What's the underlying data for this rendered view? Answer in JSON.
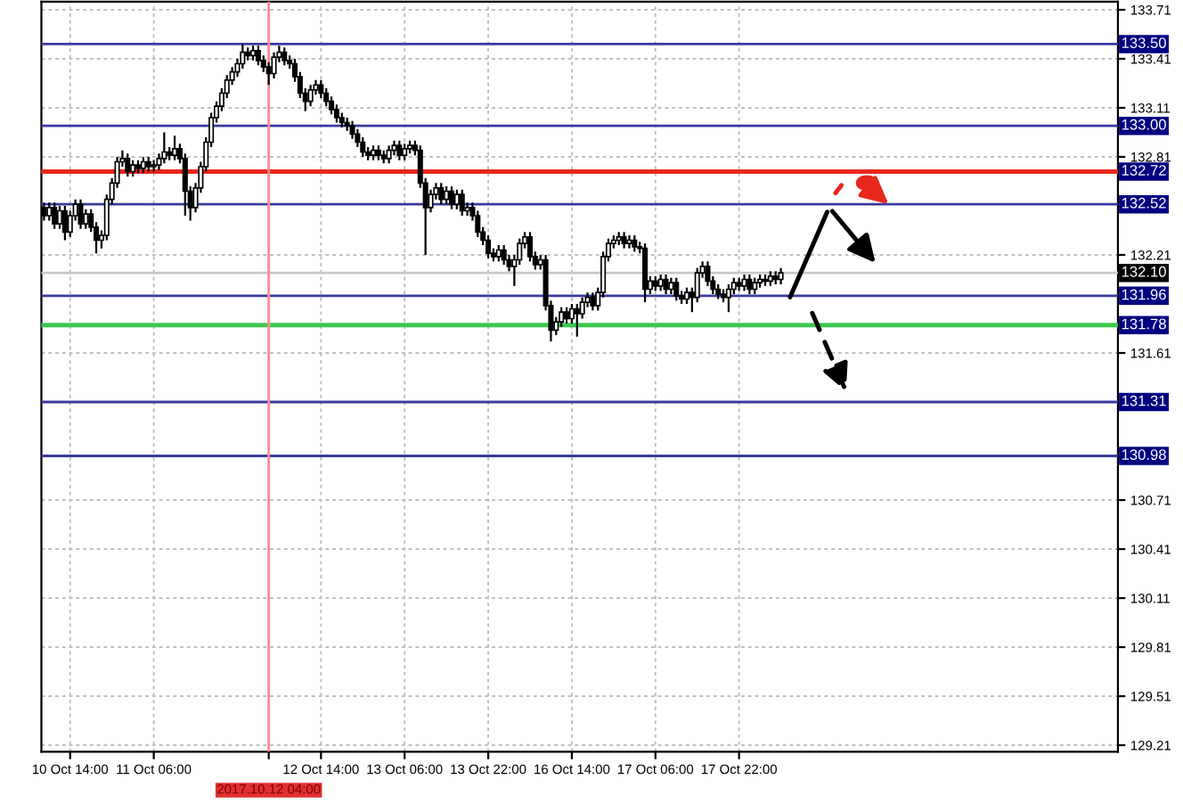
{
  "chart_data": {
    "type": "candlestick",
    "categories": [
      null,
      null,
      null,
      null,
      null,
      "10 Oct 14:00",
      null,
      null,
      null,
      null,
      null,
      null,
      null,
      null,
      null,
      null,
      null,
      null,
      null,
      null,
      null,
      "11 Oct 06:00",
      null,
      null,
      null,
      null,
      null,
      null,
      null,
      null,
      null,
      null,
      null,
      null,
      null,
      null,
      null,
      null,
      null,
      null,
      null,
      null,
      null,
      "2017.10.12 04:00",
      null,
      null,
      null,
      null,
      null,
      null,
      null,
      null,
      null,
      "12 Oct 14:00",
      null,
      null,
      null,
      null,
      null,
      null,
      null,
      null,
      null,
      null,
      null,
      null,
      null,
      null,
      null,
      "13 Oct 06:00",
      null,
      null,
      null,
      null,
      null,
      null,
      null,
      null,
      null,
      null,
      null,
      null,
      null,
      null,
      null,
      "13 Oct 22:00",
      null,
      null,
      null,
      null,
      null,
      null,
      null,
      null,
      null,
      null,
      null,
      null,
      null,
      null,
      null,
      "16 Oct 14:00",
      null,
      null,
      null,
      null,
      null,
      null,
      null,
      null,
      null,
      null,
      null,
      null,
      null,
      null,
      null,
      "17 Oct 06:00",
      null,
      null,
      null,
      null,
      null,
      null,
      null,
      null,
      null,
      null,
      null,
      null,
      null,
      null,
      null,
      "17 Oct 22:00",
      null,
      null,
      null,
      null,
      null,
      null,
      null,
      null,
      null,
      null,
      null,
      null,
      null,
      null,
      null,
      null,
      null,
      null,
      null,
      null,
      null,
      null,
      null,
      null,
      null,
      null,
      null,
      null,
      null,
      null,
      null,
      null,
      null,
      null,
      null,
      null,
      null,
      null,
      null,
      null,
      null,
      null,
      null,
      null,
      null,
      null,
      null,
      null,
      null,
      null,
      null,
      null,
      null,
      null,
      null,
      null,
      null,
      null,
      null,
      null,
      null,
      null,
      null,
      null,
      null,
      null,
      null,
      null,
      null,
      null,
      null,
      null
    ],
    "ohlc": [
      [
        132.5,
        132.53,
        132.42,
        132.45
      ],
      [
        132.45,
        132.53,
        132.42,
        132.5
      ],
      [
        132.5,
        132.53,
        132.37,
        132.4
      ],
      [
        132.4,
        132.51,
        132.37,
        132.48
      ],
      [
        132.48,
        132.51,
        132.3,
        132.35
      ],
      [
        132.35,
        132.48,
        132.32,
        132.45
      ],
      [
        132.45,
        132.55,
        132.42,
        132.52
      ],
      [
        132.52,
        132.55,
        132.37,
        132.4
      ],
      [
        132.4,
        132.49,
        132.37,
        132.46
      ],
      [
        132.46,
        132.49,
        132.35,
        132.38
      ],
      [
        132.38,
        132.41,
        132.22,
        132.3
      ],
      [
        132.3,
        132.36,
        132.25,
        132.33
      ],
      [
        132.33,
        132.58,
        132.3,
        132.55
      ],
      [
        132.55,
        132.68,
        132.52,
        132.65
      ],
      [
        132.65,
        132.81,
        132.62,
        132.78
      ],
      [
        132.78,
        132.85,
        132.75,
        132.8
      ],
      [
        132.8,
        132.83,
        132.69,
        132.72
      ],
      [
        132.72,
        132.79,
        132.69,
        132.76
      ],
      [
        132.76,
        132.79,
        132.71,
        132.74
      ],
      [
        132.74,
        132.81,
        132.71,
        132.78
      ],
      [
        132.78,
        132.81,
        132.72,
        132.75
      ],
      [
        132.75,
        132.79,
        132.72,
        132.76
      ],
      [
        132.76,
        132.83,
        132.73,
        132.8
      ],
      [
        132.8,
        132.96,
        132.77,
        132.84
      ],
      [
        132.84,
        132.87,
        132.79,
        132.82
      ],
      [
        132.82,
        132.94,
        132.79,
        132.86
      ],
      [
        132.86,
        132.89,
        132.77,
        132.8
      ],
      [
        132.8,
        132.83,
        132.45,
        132.6
      ],
      [
        132.6,
        132.63,
        132.42,
        132.5
      ],
      [
        132.5,
        132.65,
        132.47,
        132.62
      ],
      [
        132.62,
        132.78,
        132.59,
        132.75
      ],
      [
        132.75,
        132.93,
        132.72,
        132.9
      ],
      [
        132.9,
        133.08,
        132.87,
        133.05
      ],
      [
        133.05,
        133.15,
        133.02,
        133.12
      ],
      [
        133.12,
        133.23,
        133.09,
        133.2
      ],
      [
        133.2,
        133.31,
        133.17,
        133.28
      ],
      [
        133.28,
        133.36,
        133.25,
        133.33
      ],
      [
        133.33,
        133.41,
        133.3,
        133.38
      ],
      [
        133.38,
        133.5,
        133.35,
        133.45
      ],
      [
        133.45,
        133.48,
        133.4,
        133.43
      ],
      [
        133.43,
        133.49,
        133.4,
        133.46
      ],
      [
        133.46,
        133.49,
        133.37,
        133.4
      ],
      [
        133.4,
        133.43,
        133.33,
        133.36
      ],
      [
        133.36,
        133.39,
        133.25,
        133.32
      ],
      [
        133.32,
        133.45,
        133.29,
        133.42
      ],
      [
        133.42,
        133.49,
        133.39,
        133.45
      ],
      [
        133.45,
        133.48,
        133.37,
        133.4
      ],
      [
        133.4,
        133.43,
        133.35,
        133.38
      ],
      [
        133.38,
        133.41,
        133.27,
        133.3
      ],
      [
        133.3,
        133.33,
        133.17,
        133.2
      ],
      [
        133.2,
        133.23,
        133.09,
        133.15
      ],
      [
        133.15,
        133.25,
        133.12,
        133.22
      ],
      [
        133.22,
        133.28,
        133.19,
        133.25
      ],
      [
        133.25,
        133.28,
        133.17,
        133.2
      ],
      [
        133.2,
        133.23,
        133.12,
        133.15
      ],
      [
        133.15,
        133.18,
        133.07,
        133.1
      ],
      [
        133.1,
        133.13,
        133.02,
        133.05
      ],
      [
        133.05,
        133.08,
        132.99,
        133.02
      ],
      [
        133.02,
        133.05,
        132.97,
        133.0
      ],
      [
        133.0,
        133.03,
        132.92,
        132.95
      ],
      [
        132.95,
        132.98,
        132.87,
        132.9
      ],
      [
        132.9,
        132.93,
        132.81,
        132.84
      ],
      [
        132.84,
        132.87,
        132.79,
        132.82
      ],
      [
        132.82,
        132.88,
        132.79,
        132.85
      ],
      [
        132.85,
        132.88,
        132.79,
        132.82
      ],
      [
        132.82,
        132.85,
        132.77,
        132.8
      ],
      [
        132.8,
        132.88,
        132.77,
        132.85
      ],
      [
        132.85,
        132.91,
        132.82,
        132.88
      ],
      [
        132.88,
        132.91,
        132.79,
        132.82
      ],
      [
        132.82,
        132.89,
        132.79,
        132.86
      ],
      [
        132.86,
        132.91,
        132.83,
        132.88
      ],
      [
        132.88,
        132.91,
        132.82,
        132.85
      ],
      [
        132.85,
        132.88,
        132.62,
        132.65
      ],
      [
        132.65,
        132.68,
        132.21,
        132.5
      ],
      [
        132.5,
        132.61,
        132.47,
        132.58
      ],
      [
        132.58,
        132.65,
        132.55,
        132.62
      ],
      [
        132.62,
        132.65,
        132.52,
        132.55
      ],
      [
        132.55,
        132.63,
        132.52,
        132.6
      ],
      [
        132.6,
        132.63,
        132.49,
        132.52
      ],
      [
        132.52,
        132.61,
        132.49,
        132.58
      ],
      [
        132.58,
        132.61,
        132.45,
        132.48
      ],
      [
        132.48,
        132.53,
        132.45,
        132.5
      ],
      [
        132.5,
        132.53,
        132.42,
        132.45
      ],
      [
        132.45,
        132.48,
        132.32,
        132.35
      ],
      [
        132.35,
        132.38,
        132.27,
        132.3
      ],
      [
        132.3,
        132.33,
        132.19,
        132.22
      ],
      [
        132.22,
        132.25,
        132.17,
        132.2
      ],
      [
        132.2,
        132.27,
        132.17,
        132.24
      ],
      [
        132.24,
        132.27,
        132.15,
        132.18
      ],
      [
        132.18,
        132.21,
        132.11,
        132.14
      ],
      [
        132.14,
        132.21,
        132.02,
        132.18
      ],
      [
        132.18,
        132.31,
        132.15,
        132.28
      ],
      [
        132.28,
        132.35,
        132.25,
        132.32
      ],
      [
        132.32,
        132.35,
        132.17,
        132.2
      ],
      [
        132.2,
        132.23,
        132.12,
        132.15
      ],
      [
        132.15,
        132.21,
        132.12,
        132.18
      ],
      [
        132.18,
        132.21,
        131.87,
        131.9
      ],
      [
        131.9,
        131.93,
        131.68,
        131.75
      ],
      [
        131.75,
        131.83,
        131.72,
        131.8
      ],
      [
        131.8,
        131.89,
        131.77,
        131.86
      ],
      [
        131.86,
        131.89,
        131.79,
        131.82
      ],
      [
        131.82,
        131.91,
        131.79,
        131.88
      ],
      [
        131.88,
        131.91,
        131.71,
        131.85
      ],
      [
        131.85,
        131.95,
        131.82,
        131.92
      ],
      [
        131.92,
        131.98,
        131.89,
        131.95
      ],
      [
        131.95,
        131.98,
        131.87,
        131.9
      ],
      [
        131.9,
        132.01,
        131.87,
        131.98
      ],
      [
        131.98,
        132.23,
        131.95,
        132.2
      ],
      [
        132.2,
        132.31,
        132.17,
        132.28
      ],
      [
        132.28,
        132.33,
        132.25,
        132.3
      ],
      [
        132.3,
        132.35,
        132.27,
        132.32
      ],
      [
        132.32,
        132.35,
        132.25,
        132.28
      ],
      [
        132.28,
        132.33,
        132.25,
        132.3
      ],
      [
        132.3,
        132.33,
        132.23,
        132.26
      ],
      [
        132.26,
        132.29,
        132.22,
        132.25
      ],
      [
        132.25,
        132.28,
        131.92,
        132.0
      ],
      [
        132.0,
        132.08,
        131.97,
        132.05
      ],
      [
        132.05,
        132.08,
        131.99,
        132.02
      ],
      [
        132.02,
        132.09,
        131.99,
        132.06
      ],
      [
        132.06,
        132.09,
        131.97,
        132.0
      ],
      [
        132.0,
        132.07,
        131.97,
        132.04
      ],
      [
        132.04,
        132.07,
        131.93,
        131.96
      ],
      [
        131.96,
        131.99,
        131.91,
        131.94
      ],
      [
        131.94,
        132.01,
        131.91,
        131.98
      ],
      [
        131.98,
        132.01,
        131.86,
        131.95
      ],
      [
        131.95,
        132.13,
        131.92,
        132.1
      ],
      [
        132.1,
        132.17,
        132.07,
        132.14
      ],
      [
        132.14,
        132.17,
        132.02,
        132.05
      ],
      [
        132.05,
        132.08,
        131.97,
        132.0
      ],
      [
        132.0,
        132.03,
        131.94,
        131.97
      ],
      [
        131.97,
        132.0,
        131.92,
        131.95
      ],
      [
        131.95,
        132.03,
        131.86,
        132.0
      ],
      [
        132.0,
        132.07,
        131.97,
        132.04
      ],
      [
        132.04,
        132.07,
        131.99,
        132.02
      ],
      [
        132.02,
        132.09,
        131.99,
        132.06
      ],
      [
        132.06,
        132.09,
        131.97,
        132.0
      ],
      [
        132.0,
        132.07,
        131.97,
        132.04
      ],
      [
        132.04,
        132.09,
        132.01,
        132.06
      ],
      [
        132.06,
        132.09,
        132.02,
        132.05
      ],
      [
        132.05,
        132.11,
        132.02,
        132.08
      ],
      [
        132.08,
        132.11,
        132.03,
        132.06
      ],
      [
        132.06,
        132.13,
        132.03,
        132.1
      ],
      null,
      null,
      null,
      null,
      null,
      null,
      null,
      null,
      null,
      null,
      null,
      null,
      null,
      null,
      null,
      null,
      null,
      null,
      null,
      null,
      null,
      null,
      null,
      null,
      null,
      null,
      null,
      null,
      null,
      null,
      null,
      null,
      null,
      null,
      null,
      null,
      null,
      null,
      null,
      null,
      null,
      null,
      null,
      null,
      null,
      null,
      null,
      null,
      null,
      null,
      null,
      null,
      null,
      null,
      null,
      null,
      null,
      null,
      null,
      null,
      null,
      null,
      null,
      null
    ],
    "ylim": [
      129.17,
      133.76
    ],
    "yticks": [
      133.71,
      133.41,
      133.11,
      132.81,
      132.21,
      131.61,
      130.71,
      130.41,
      130.11,
      129.81,
      129.51,
      129.21
    ],
    "grid": true,
    "ref_lines": [
      {
        "axis": "y",
        "value": 133.5,
        "label": "133.50",
        "color": "#3a3aa0"
      },
      {
        "axis": "y",
        "value": 133.0,
        "label": "133.00",
        "color": "#3a3aa0"
      },
      {
        "axis": "y",
        "value": 132.72,
        "label": "132.72",
        "color": "#3a3aa0"
      },
      {
        "axis": "y",
        "value": 132.52,
        "label": "132.52",
        "color": "#3a3aa0"
      },
      {
        "axis": "y",
        "value": 131.96,
        "label": "131.96",
        "color": "#3a3aa0"
      },
      {
        "axis": "y",
        "value": 131.78,
        "label": "131.78",
        "color": "#3a3aa0"
      },
      {
        "axis": "y",
        "value": 131.31,
        "label": "131.31",
        "color": "#3a3aa0"
      },
      {
        "axis": "y",
        "value": 130.98,
        "label": "130.98",
        "color": "#3a3aa0"
      },
      {
        "axis": "y",
        "value": 132.1,
        "label": "132.10",
        "color": "#c8c8c8"
      },
      {
        "axis": "y",
        "value": 132.72,
        "label": null,
        "color": "#e8281e"
      },
      {
        "axis": "y",
        "value": 131.78,
        "label": null,
        "color": "#3cc850"
      },
      {
        "axis": "x",
        "value": "2017.10.12 04:00",
        "label": null,
        "color": "#ff8c8c"
      }
    ]
  }
}
